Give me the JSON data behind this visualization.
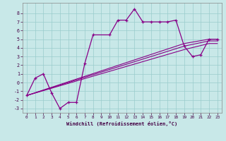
{
  "bg_color": "#c8e8e8",
  "line_color": "#880088",
  "grid_color": "#99cccc",
  "xlabel": "Windchill (Refroidissement éolien,°C)",
  "x_main": [
    0,
    1,
    2,
    3,
    4,
    5,
    6,
    7,
    8,
    10,
    11,
    12,
    13,
    14,
    15,
    16,
    17,
    18,
    19,
    20,
    21,
    22,
    23
  ],
  "y_main": [
    -1.5,
    0.5,
    1.0,
    -1.2,
    -3.0,
    -2.3,
    -2.3,
    2.2,
    5.5,
    5.5,
    7.2,
    7.2,
    8.5,
    7.0,
    7.0,
    7.0,
    7.0,
    7.2,
    4.2,
    3.0,
    3.2,
    5.0,
    5.0
  ],
  "trend_lines": [
    {
      "x": [
        0,
        19,
        22,
        23
      ],
      "y": [
        -1.5,
        4.5,
        5.0,
        5.0
      ]
    },
    {
      "x": [
        0,
        19,
        22,
        23
      ],
      "y": [
        -1.5,
        4.2,
        4.8,
        4.8
      ]
    },
    {
      "x": [
        0,
        19,
        22,
        23
      ],
      "y": [
        -1.5,
        3.8,
        4.5,
        4.5
      ]
    }
  ],
  "xlim": [
    -0.5,
    23.5
  ],
  "ylim": [
    -3.5,
    9.2
  ],
  "xticks": [
    0,
    1,
    2,
    3,
    4,
    5,
    6,
    7,
    8,
    9,
    10,
    11,
    12,
    13,
    14,
    15,
    16,
    17,
    18,
    19,
    20,
    21,
    22,
    23
  ],
  "yticks": [
    -3,
    -2,
    -1,
    0,
    1,
    2,
    3,
    4,
    5,
    6,
    7,
    8
  ]
}
